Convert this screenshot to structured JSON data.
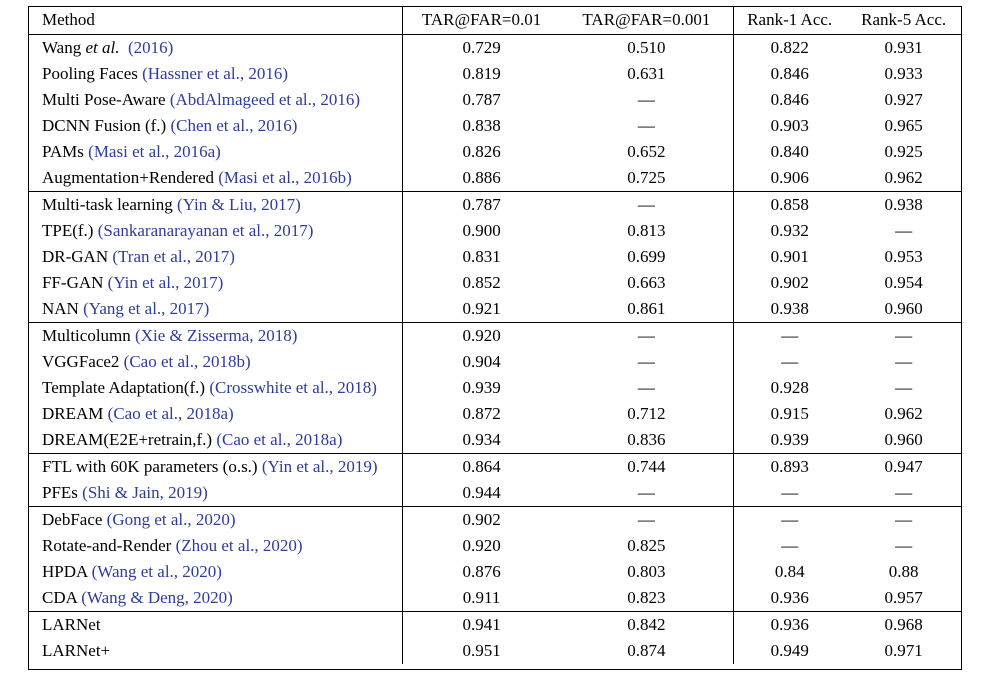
{
  "header": {
    "method": "Method",
    "c1": "TAR@FAR=0.01",
    "c2": "TAR@FAR=0.001",
    "c3": "Rank-1 Acc.",
    "c4": "Rank-5 Acc."
  },
  "rows": [
    {
      "name": "Wang",
      "etal": " et al.",
      "cite": "  (2016)",
      "v": [
        "0.729",
        "0.510",
        "0.822",
        "0.931"
      ]
    },
    {
      "name": "Pooling Faces ",
      "cite": "(Hassner et al., 2016)",
      "v": [
        "0.819",
        "0.631",
        "0.846",
        "0.933"
      ]
    },
    {
      "name": "Multi Pose-Aware ",
      "cite": "(AbdAlmageed et al., 2016)",
      "v": [
        "0.787",
        "—",
        "0.846",
        "0.927"
      ]
    },
    {
      "name": "DCNN Fusion (f.) ",
      "cite": "(Chen et al., 2016)",
      "v": [
        "0.838",
        "—",
        "0.903",
        "0.965"
      ]
    },
    {
      "name": "PAMs ",
      "cite": "(Masi et al., 2016a)",
      "v": [
        "0.826",
        "0.652",
        "0.840",
        "0.925"
      ]
    },
    {
      "name": "Augmentation+Rendered ",
      "cite": "(Masi et al., 2016b)",
      "v": [
        "0.886",
        "0.725",
        "0.906",
        "0.962"
      ]
    },
    {
      "name": "Multi-task learning ",
      "cite": "(Yin & Liu, 2017)",
      "v": [
        "0.787",
        "—",
        "0.858",
        "0.938"
      ]
    },
    {
      "name": "TPE(f.) ",
      "cite": "(Sankaranarayanan et al., 2017)",
      "v": [
        "0.900",
        "0.813",
        "0.932",
        "—"
      ]
    },
    {
      "name": "DR-GAN ",
      "cite": "(Tran et al., 2017)",
      "v": [
        "0.831",
        "0.699",
        "0.901",
        "0.953"
      ]
    },
    {
      "name": "FF-GAN ",
      "cite": "(Yin et al., 2017)",
      "v": [
        "0.852",
        "0.663",
        "0.902",
        "0.954"
      ]
    },
    {
      "name": "NAN ",
      "cite": "(Yang et al., 2017)",
      "v": [
        "0.921",
        "0.861",
        "0.938",
        "0.960"
      ]
    },
    {
      "name": "Multicolumn ",
      "cite": "(Xie & Zisserma, 2018)",
      "v": [
        "0.920",
        "—",
        "—",
        "—"
      ]
    },
    {
      "name": "VGGFace2 ",
      "cite": "(Cao et al., 2018b)",
      "v": [
        "0.904",
        "—",
        "—",
        "—"
      ]
    },
    {
      "name": "Template Adaptation(f.)  ",
      "cite": "(Crosswhite et al., 2018)",
      "v": [
        "0.939",
        "—",
        "0.928",
        "—"
      ]
    },
    {
      "name": "DREAM ",
      "cite": "(Cao et al., 2018a)",
      "v": [
        "0.872",
        "0.712",
        "0.915",
        "0.962"
      ]
    },
    {
      "name": "DREAM(E2E+retrain,f.) ",
      "cite": "(Cao et al., 2018a)",
      "v": [
        "0.934",
        "0.836",
        "0.939",
        "0.960"
      ]
    },
    {
      "name": "FTL with 60K parameters (o.s.) ",
      "cite": "(Yin et al., 2019)",
      "v": [
        "0.864",
        "0.744",
        "0.893",
        "0.947"
      ]
    },
    {
      "name": "PFEs ",
      "cite": "(Shi & Jain, 2019)",
      "v": [
        "0.944",
        "—",
        "—",
        "—"
      ]
    },
    {
      "name": "DebFace ",
      "cite": "(Gong et al., 2020)",
      "v": [
        "0.902",
        "—",
        "—",
        "—"
      ]
    },
    {
      "name": "Rotate-and-Render ",
      "cite": "(Zhou et al., 2020)",
      "v": [
        "0.920",
        "0.825",
        "—",
        "—"
      ]
    },
    {
      "name": "HPDA ",
      "cite": "(Wang et al., 2020)",
      "v": [
        "0.876",
        "0.803",
        "0.84",
        "0.88"
      ]
    },
    {
      "name": "CDA ",
      "cite": "(Wang & Deng, 2020)",
      "v": [
        "0.911",
        "0.823",
        "0.936",
        "0.957"
      ]
    },
    {
      "name": "LARNet",
      "cite": "",
      "v": [
        "0.941",
        "0.842",
        "0.936",
        "0.968"
      ]
    },
    {
      "name": "LARNet+",
      "cite": "",
      "v": [
        "0.951",
        "0.874",
        "0.949",
        "0.971"
      ],
      "bold": true
    }
  ]
}
